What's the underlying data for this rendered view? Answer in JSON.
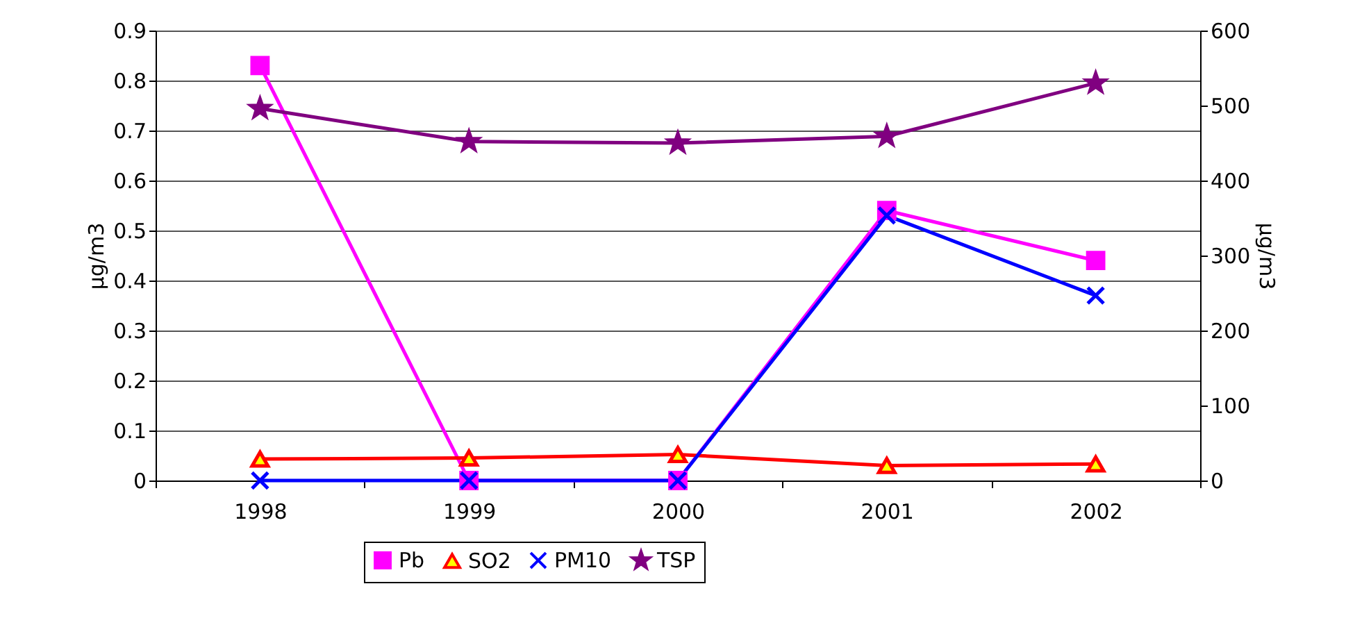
{
  "chart_data": {
    "type": "line",
    "categories": [
      "1998",
      "1999",
      "2000",
      "2001",
      "2002"
    ],
    "series": [
      {
        "name": "Pb",
        "color": "#ff00ff",
        "marker": "square",
        "values": [
          0.83,
          0,
          0,
          0.54,
          0.44
        ]
      },
      {
        "name": "SO2",
        "color": "#ff0000",
        "marker": "triangle",
        "values": [
          0.043,
          0.045,
          0.052,
          0.03,
          0.033
        ]
      },
      {
        "name": "PM10",
        "color": "#0000ff",
        "marker": "cross",
        "values": [
          0,
          0,
          0,
          0.53,
          0.37
        ]
      },
      {
        "name": "TSP",
        "color": "#800080",
        "marker": "star",
        "axis": "y2",
        "values": [
          496,
          452,
          450,
          459,
          530
        ]
      }
    ],
    "ylabel": "μg/m3",
    "y2label": "μg/m3",
    "ylim": [
      0,
      0.9
    ],
    "yticks": [
      0,
      0.1,
      0.2,
      0.3,
      0.4,
      0.5,
      0.6,
      0.7,
      0.8,
      0.9
    ],
    "y2lim": [
      0,
      600
    ],
    "y2ticks": [
      0,
      100,
      200,
      300,
      400,
      500,
      600
    ],
    "grid": "y",
    "legend": "bottom",
    "line_style": "solid"
  }
}
